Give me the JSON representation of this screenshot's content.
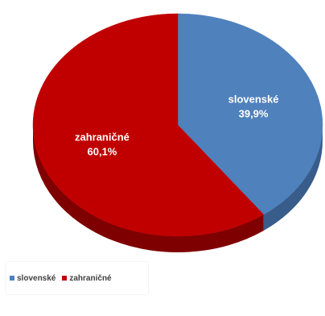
{
  "chart_data": {
    "type": "pie",
    "style": "3d",
    "slices": [
      {
        "name": "slovenské",
        "value": 39.9,
        "label": "39,9%",
        "color": "#4f81bd",
        "side_color": "#385d8a"
      },
      {
        "name": "zahraničné",
        "value": 60.1,
        "label": "60,1%",
        "color": "#c00000",
        "side_color": "#7f0000"
      }
    ],
    "legend_placement": "bottom-left"
  }
}
